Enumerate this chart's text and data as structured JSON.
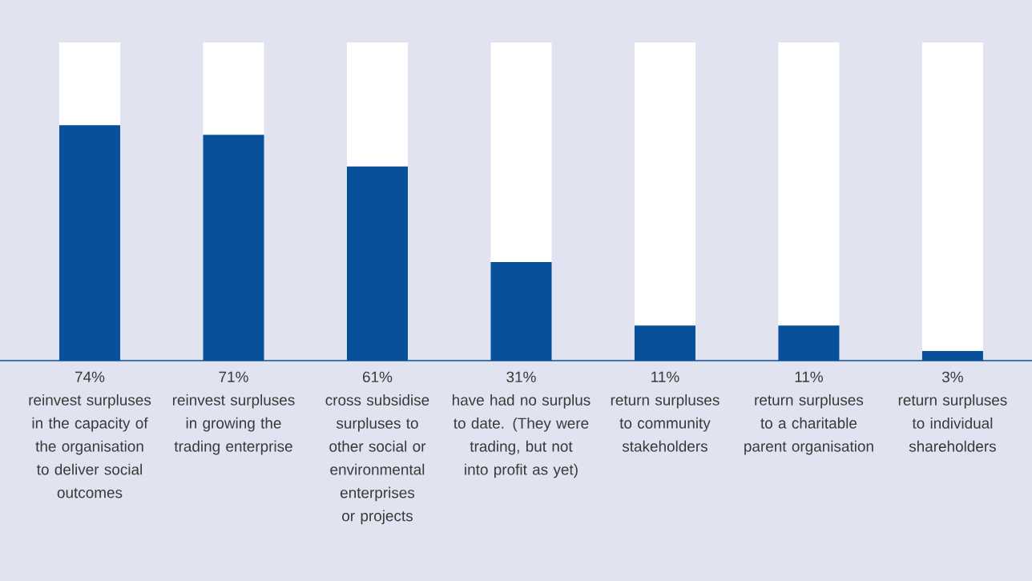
{
  "chart_data": {
    "type": "bar",
    "stacked": true,
    "categories": [
      "reinvest surpluses in the capacity of the organisation to deliver social outcomes",
      "reinvest surpluses in growing the trading enterprise",
      "cross subsidise surpluses to other social or environmental enterprises or projects",
      "have had no surplus to date. (They were trading, but not into profit as yet)",
      "return surpluses to community stakeholders",
      "return surpluses to a charitable parent organisation",
      "return surpluses to individual shareholders"
    ],
    "series": [
      {
        "color": "#08519a",
        "values": [
          74,
          71,
          61,
          31,
          11,
          11,
          3
        ],
        "value_labels": [
          "74%",
          "71%",
          "61%",
          "31%",
          "11%",
          "11%",
          "3%"
        ]
      },
      {
        "color": "#ffffff",
        "values": [
          26,
          29,
          39,
          69,
          89,
          89,
          97
        ]
      }
    ]
  }
}
